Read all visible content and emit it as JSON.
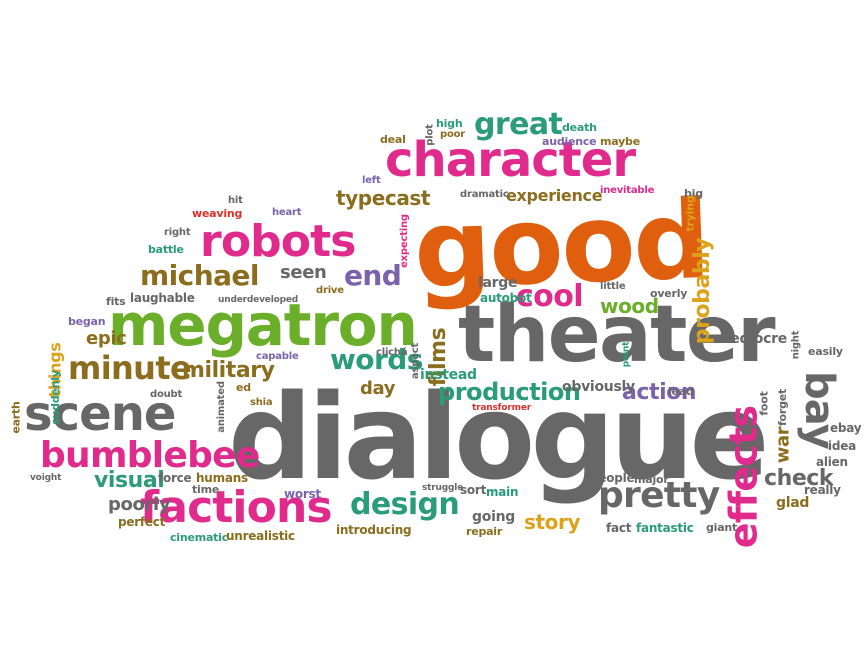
{
  "palette": {
    "gray": "#676767",
    "orange": "#e05f0e",
    "magenta": "#e02a8c",
    "green": "#6bae2a",
    "teal": "#2a9c78",
    "olive": "#8a6d1d",
    "purple": "#7a62ad",
    "gold": "#dba21a",
    "red": "#d7322a"
  },
  "words": [
    {
      "text": "good",
      "color": "orange"
    },
    {
      "text": "dialogue",
      "color": "gray"
    },
    {
      "text": "theater",
      "color": "gray"
    },
    {
      "text": "megatron",
      "color": "green"
    },
    {
      "text": "character",
      "color": "magenta"
    },
    {
      "text": "scene",
      "color": "gray"
    },
    {
      "text": "robots",
      "color": "magenta"
    },
    {
      "text": "factions",
      "color": "magenta"
    },
    {
      "text": "bumblebee",
      "color": "magenta"
    },
    {
      "text": "effects",
      "color": "magenta"
    },
    {
      "text": "bay",
      "color": "gray"
    },
    {
      "text": "pretty",
      "color": "gray"
    },
    {
      "text": "design",
      "color": "teal"
    },
    {
      "text": "michael",
      "color": "olive"
    },
    {
      "text": "minute",
      "color": "olive"
    },
    {
      "text": "military",
      "color": "olive"
    },
    {
      "text": "great",
      "color": "teal"
    },
    {
      "text": "words",
      "color": "teal"
    },
    {
      "text": "end",
      "color": "purple"
    },
    {
      "text": "cool",
      "color": "magenta"
    },
    {
      "text": "production",
      "color": "teal"
    },
    {
      "text": "typecast",
      "color": "olive"
    },
    {
      "text": "films",
      "color": "olive"
    },
    {
      "text": "story",
      "color": "gold"
    },
    {
      "text": "action",
      "color": "purple"
    },
    {
      "text": "war",
      "color": "olive"
    },
    {
      "text": "visual",
      "color": "teal"
    },
    {
      "text": "check",
      "color": "gray"
    },
    {
      "text": "probably",
      "color": "gold"
    },
    {
      "text": "wood",
      "color": "green"
    },
    {
      "text": "poorly",
      "color": "gray"
    },
    {
      "text": "experience",
      "color": "olive"
    },
    {
      "text": "epic",
      "color": "olive"
    },
    {
      "text": "day",
      "color": "olive"
    },
    {
      "text": "seen",
      "color": "gray"
    },
    {
      "text": "things",
      "color": "gold"
    },
    {
      "text": "obviously",
      "color": "gray"
    },
    {
      "text": "large",
      "color": "gray"
    },
    {
      "text": "autobot",
      "color": "teal"
    },
    {
      "text": "people",
      "color": "gray"
    },
    {
      "text": "fantastic",
      "color": "teal"
    },
    {
      "text": "mediocre",
      "color": "gray"
    },
    {
      "text": "laughable",
      "color": "gray"
    },
    {
      "text": "instead",
      "color": "teal"
    },
    {
      "text": "going",
      "color": "gray"
    },
    {
      "text": "sort",
      "color": "gray"
    },
    {
      "text": "main",
      "color": "teal"
    },
    {
      "text": "introducing",
      "color": "olive"
    },
    {
      "text": "cinematic",
      "color": "teal"
    },
    {
      "text": "unrealistic",
      "color": "olive"
    },
    {
      "text": "fact",
      "color": "gray"
    },
    {
      "text": "giant",
      "color": "gray"
    },
    {
      "text": "repair",
      "color": "olive"
    },
    {
      "text": "major",
      "color": "gray"
    },
    {
      "text": "perfect",
      "color": "olive"
    },
    {
      "text": "force",
      "color": "gray"
    },
    {
      "text": "humans",
      "color": "olive"
    },
    {
      "text": "time",
      "color": "gray"
    },
    {
      "text": "worst",
      "color": "purple"
    },
    {
      "text": "alien",
      "color": "gray"
    },
    {
      "text": "really",
      "color": "gray"
    },
    {
      "text": "glad",
      "color": "olive"
    },
    {
      "text": "idea",
      "color": "gray"
    },
    {
      "text": "ebay",
      "color": "gray"
    },
    {
      "text": "easily",
      "color": "gray"
    },
    {
      "text": "night",
      "color": "gray"
    },
    {
      "text": "earth",
      "color": "olive"
    },
    {
      "text": "suddenly",
      "color": "teal"
    },
    {
      "text": "began",
      "color": "purple"
    },
    {
      "text": "fits",
      "color": "gray"
    },
    {
      "text": "battle",
      "color": "teal"
    },
    {
      "text": "right",
      "color": "gray"
    },
    {
      "text": "weaving",
      "color": "red"
    },
    {
      "text": "heart",
      "color": "purple"
    },
    {
      "text": "hit",
      "color": "gray"
    },
    {
      "text": "deal",
      "color": "olive"
    },
    {
      "text": "left",
      "color": "purple"
    },
    {
      "text": "high",
      "color": "teal"
    },
    {
      "text": "plot",
      "color": "gray"
    },
    {
      "text": "poor",
      "color": "olive"
    },
    {
      "text": "audience",
      "color": "purple"
    },
    {
      "text": "death",
      "color": "teal"
    },
    {
      "text": "maybe",
      "color": "olive"
    },
    {
      "text": "dramatic",
      "color": "gray"
    },
    {
      "text": "inevitable",
      "color": "magenta"
    },
    {
      "text": "big",
      "color": "gray"
    },
    {
      "text": "drive",
      "color": "olive"
    },
    {
      "text": "clichá",
      "color": "gray"
    },
    {
      "text": "shia",
      "color": "olive"
    },
    {
      "text": "doubt",
      "color": "gray"
    },
    {
      "text": "animated",
      "color": "gray"
    },
    {
      "text": "capable",
      "color": "purple"
    },
    {
      "text": "aspect",
      "color": "gray"
    },
    {
      "text": "expecting",
      "color": "magenta"
    },
    {
      "text": "lead",
      "color": "gray"
    },
    {
      "text": "overly",
      "color": "gray"
    },
    {
      "text": "trying",
      "color": "gold"
    },
    {
      "text": "foot",
      "color": "gray"
    },
    {
      "text": "forget",
      "color": "gray"
    },
    {
      "text": "little",
      "color": "gray"
    },
    {
      "text": "ed",
      "color": "olive"
    },
    {
      "text": "underdeveloped",
      "color": "gray"
    },
    {
      "text": "transformer",
      "color": "red"
    },
    {
      "text": "struggle",
      "color": "gray"
    },
    {
      "text": "voight",
      "color": "gray"
    },
    {
      "text": "point",
      "color": "teal"
    }
  ]
}
